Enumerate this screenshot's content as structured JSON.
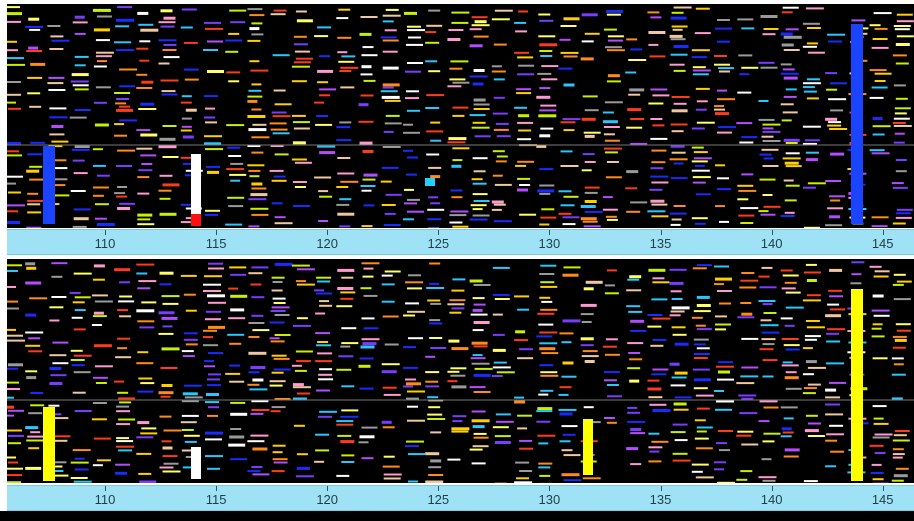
{
  "viewer": {
    "panels": [
      {
        "id": "top",
        "ruler_ticks": [
          "110",
          "115",
          "120",
          "125",
          "130",
          "135",
          "140",
          "145"
        ],
        "highlight_colors": [
          "#1a44ff",
          "#ffffff",
          "#ff1010",
          "#20d0ff",
          "#1a44ff"
        ]
      },
      {
        "id": "bottom",
        "ruler_ticks": [
          "110",
          "115",
          "120",
          "125",
          "130",
          "135",
          "140",
          "145"
        ],
        "highlight_colors": [
          "#ffff00",
          "#ffffff",
          "#ffff00",
          "#ffff00"
        ]
      }
    ],
    "palette": [
      "#ffffff",
      "#ffff66",
      "#ffd000",
      "#ff8c1a",
      "#ff3b1a",
      "#b44cff",
      "#7a3cff",
      "#1a2bff",
      "#28c8ff",
      "#c8f000",
      "#f0c8a0",
      "#9a9a9a",
      "#ff9ad0"
    ]
  }
}
